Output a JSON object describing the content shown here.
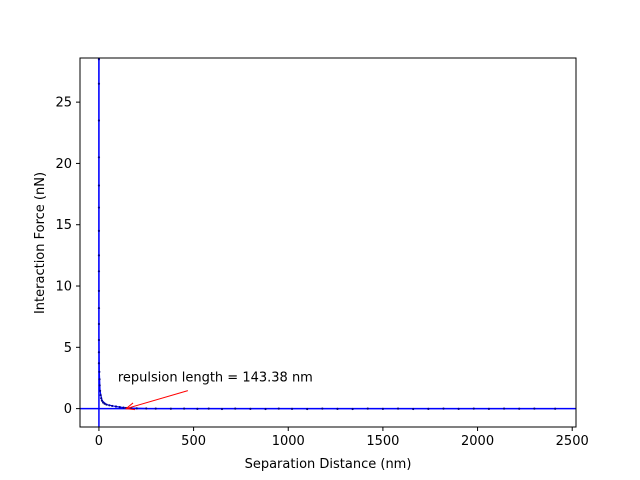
{
  "chart_data": {
    "type": "scatter",
    "title": "",
    "xlabel": "Separation Distance (nm)",
    "ylabel": "Interaction Force (nN)",
    "xlim": [
      -100,
      2520
    ],
    "ylim": [
      -1.5,
      28.6
    ],
    "xticks": [
      0,
      500,
      1000,
      1500,
      2000,
      2500
    ],
    "yticks": [
      0,
      5,
      10,
      15,
      20,
      25
    ],
    "grid": false,
    "series": [
      {
        "points": [
          [
            0,
            28.5
          ],
          [
            0,
            26.5
          ],
          [
            0,
            23.5
          ],
          [
            0,
            20.5
          ],
          [
            0,
            18.2
          ],
          [
            0,
            16.4
          ],
          [
            0,
            14.5
          ],
          [
            0,
            12.5
          ],
          [
            0,
            11.2
          ],
          [
            0,
            9.6
          ],
          [
            0,
            8.2
          ],
          [
            0,
            6.9
          ],
          [
            0,
            5.6
          ],
          [
            0,
            4.6
          ],
          [
            0,
            3.7
          ],
          [
            2,
            3.0
          ],
          [
            3,
            2.4
          ],
          [
            4,
            1.9
          ],
          [
            6,
            1.45
          ],
          [
            9,
            1.1
          ],
          [
            12,
            0.85
          ],
          [
            16,
            0.65
          ],
          [
            22,
            0.5
          ],
          [
            30,
            0.4
          ],
          [
            40,
            0.33
          ],
          [
            55,
            0.27
          ],
          [
            70,
            0.22
          ],
          [
            90,
            0.17
          ],
          [
            110,
            0.12
          ],
          [
            130,
            0.08
          ],
          [
            143,
            0.05
          ],
          [
            170,
            0.03
          ],
          [
            200,
            0.02
          ],
          [
            250,
            0.01
          ],
          [
            300,
            0.0
          ],
          [
            380,
            -0.01
          ],
          [
            450,
            0.0
          ],
          [
            520,
            -0.02
          ],
          [
            580,
            0.0
          ],
          [
            650,
            -0.03
          ],
          [
            720,
            0.0
          ],
          [
            800,
            -0.02
          ],
          [
            880,
            -0.03
          ],
          [
            950,
            0.0
          ],
          [
            1020,
            -0.02
          ],
          [
            1100,
            -0.03
          ],
          [
            1180,
            0.0
          ],
          [
            1260,
            -0.02
          ],
          [
            1340,
            -0.03
          ],
          [
            1420,
            0.0
          ],
          [
            1500,
            -0.02
          ],
          [
            1580,
            0.0
          ],
          [
            1660,
            -0.03
          ],
          [
            1740,
            -0.02
          ],
          [
            1820,
            0.0
          ],
          [
            1900,
            -0.02
          ],
          [
            1980,
            0.0
          ],
          [
            2060,
            -0.02
          ],
          [
            2140,
            0.0
          ],
          [
            2220,
            -0.01
          ],
          [
            2300,
            0.0
          ],
          [
            2410,
            -0.01
          ]
        ],
        "line": [
          [
            0,
            28.6
          ],
          [
            0,
            6.0
          ],
          [
            2,
            3.0
          ],
          [
            6,
            1.45
          ],
          [
            16,
            0.65
          ],
          [
            40,
            0.33
          ],
          [
            90,
            0.17
          ],
          [
            143,
            0.05
          ],
          [
            250,
            0.01
          ],
          [
            600,
            0.0
          ],
          [
            2410,
            0.0
          ]
        ]
      }
    ],
    "reference_lines": {
      "vertical_x": 0,
      "horizontal_y": 0
    },
    "annotation": {
      "text": "repulsion length = 143.38 nm",
      "text_x": 100,
      "text_y": 2.2,
      "arrow_to_x": 143.38,
      "arrow_to_y": 0.0
    },
    "colors": {
      "data": "#00008b",
      "fit_line": "#0000ff",
      "arrow": "#ff0000",
      "axes": "#000000"
    }
  }
}
